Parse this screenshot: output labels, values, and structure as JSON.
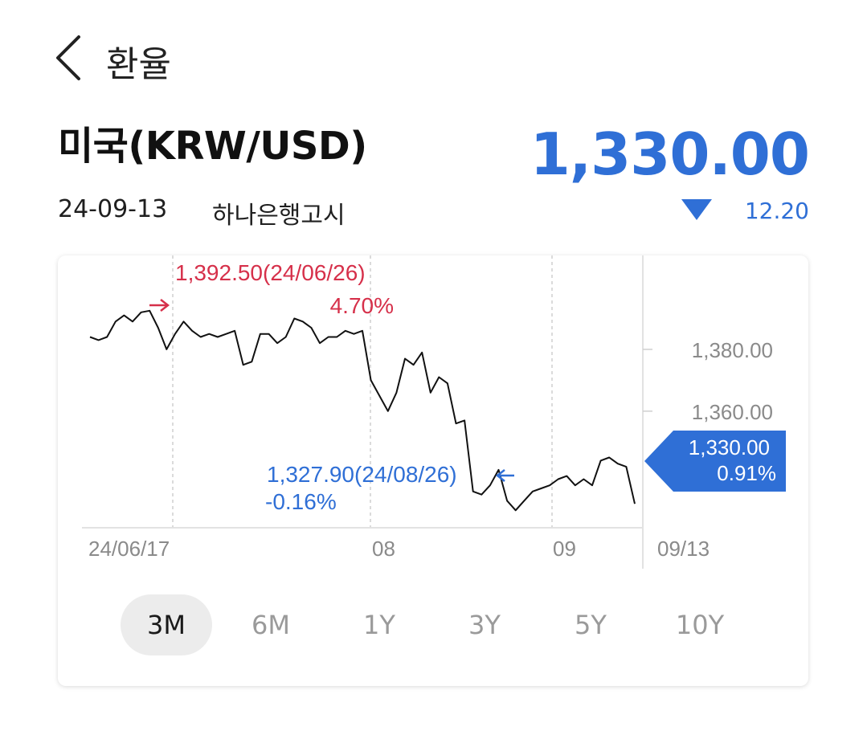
{
  "header": {
    "title": "환율"
  },
  "currency": {
    "name": "미국(KRW/USD)",
    "rate": "1,330.00",
    "date": "24-09-13",
    "source": "하나은행고시",
    "change": "12.20",
    "direction": "down"
  },
  "colors": {
    "accent": "#2f6fd6",
    "high": "#d6304a",
    "line": "#111111"
  },
  "chart_data": {
    "type": "line",
    "x_ticks": [
      "24/06/17",
      "08",
      "09",
      "09/13"
    ],
    "y_ticks": [
      "1,380.00",
      "1,360.00"
    ],
    "ylim": [
      1322,
      1400
    ],
    "values": [
      1384,
      1383,
      1384,
      1389,
      1391,
      1389,
      1392,
      1392.5,
      1387,
      1380,
      1385,
      1389,
      1386,
      1384,
      1385,
      1384,
      1385,
      1386,
      1375,
      1376,
      1385,
      1385,
      1382,
      1384,
      1390,
      1389,
      1387,
      1382,
      1384,
      1384,
      1386,
      1385,
      1386,
      1370,
      1365,
      1360,
      1366,
      1377,
      1375,
      1379,
      1366,
      1371,
      1369,
      1356,
      1357,
      1334,
      1333,
      1336,
      1341,
      1331,
      1327.9,
      1331,
      1334,
      1335,
      1336,
      1338,
      1339,
      1336,
      1338,
      1336,
      1344,
      1345,
      1343,
      1342,
      1330
    ],
    "high_marker": {
      "label": "1,392.50(24/06/26)",
      "pct": "4.70%"
    },
    "low_marker": {
      "label": "1,327.90(24/08/26)",
      "pct": "-0.16%"
    },
    "current_marker": {
      "value": "1,330.00",
      "pct": "0.91%"
    }
  },
  "tabs": [
    {
      "label": "3M",
      "active": true
    },
    {
      "label": "6M",
      "active": false
    },
    {
      "label": "1Y",
      "active": false
    },
    {
      "label": "3Y",
      "active": false
    },
    {
      "label": "5Y",
      "active": false
    },
    {
      "label": "10Y",
      "active": false
    }
  ]
}
